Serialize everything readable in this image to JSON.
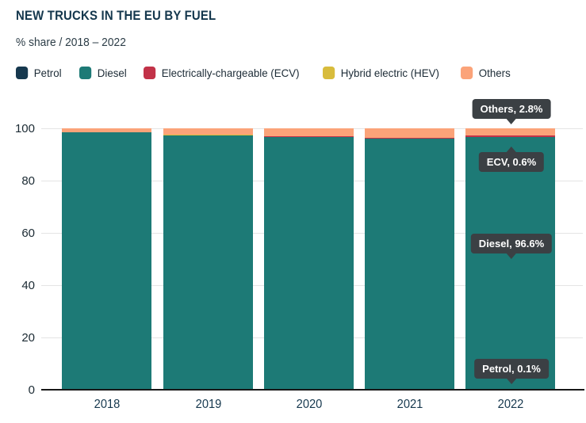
{
  "header": {
    "title": "NEW TRUCKS IN THE EU BY FUEL",
    "subtitle": "% share / 2018 – 2022"
  },
  "colors": {
    "petrol": "#16384e",
    "diesel": "#1d7a76",
    "ecv": "#c23248",
    "hev": "#d8bc3c",
    "others": "#fba379",
    "callout_bg": "#3b4044",
    "gridline": "#e4e4e4",
    "axis": "#181818"
  },
  "legend": [
    {
      "key": "petrol",
      "label": "Petrol"
    },
    {
      "key": "diesel",
      "label": "Diesel"
    },
    {
      "key": "ecv",
      "label": "Electrically-chargeable (ECV)"
    },
    {
      "key": "hev",
      "label": "Hybrid electric (HEV)"
    },
    {
      "key": "others",
      "label": "Others"
    }
  ],
  "chart_data": {
    "type": "bar",
    "stacked": true,
    "unit": "%",
    "title": "NEW TRUCKS IN THE EU BY FUEL",
    "subtitle": "% share / 2018 – 2022",
    "categories": [
      "2018",
      "2019",
      "2020",
      "2021",
      "2022"
    ],
    "series": [
      {
        "name": "Petrol",
        "key": "petrol",
        "values": [
          0.2,
          0.2,
          0.1,
          0.1,
          0.1
        ]
      },
      {
        "name": "Diesel",
        "key": "diesel",
        "values": [
          98.3,
          97.0,
          96.5,
          95.9,
          96.6
        ]
      },
      {
        "name": "Electrically-chargeable (ECV)",
        "key": "ecv",
        "values": [
          0.0,
          0.0,
          0.3,
          0.5,
          0.6
        ]
      },
      {
        "name": "Hybrid electric (HEV)",
        "key": "hev",
        "values": [
          0.0,
          0.3,
          0.0,
          0.0,
          0.0
        ]
      },
      {
        "name": "Others",
        "key": "others",
        "values": [
          1.5,
          2.5,
          3.1,
          3.5,
          2.8
        ]
      }
    ],
    "ylim": [
      0,
      100
    ],
    "yticks": [
      0,
      20,
      40,
      60,
      80,
      100
    ],
    "grid": "horizontal",
    "legend_position": "top",
    "annotations": [
      {
        "text": "Others, 2.8%",
        "x": "2022",
        "series": "Others"
      },
      {
        "text": "ECV, 0.6%",
        "x": "2022",
        "series": "Electrically-chargeable (ECV)"
      },
      {
        "text": "Diesel, 96.6%",
        "x": "2022",
        "series": "Diesel"
      },
      {
        "text": "Petrol, 0.1%",
        "x": "2022",
        "series": "Petrol"
      }
    ]
  }
}
